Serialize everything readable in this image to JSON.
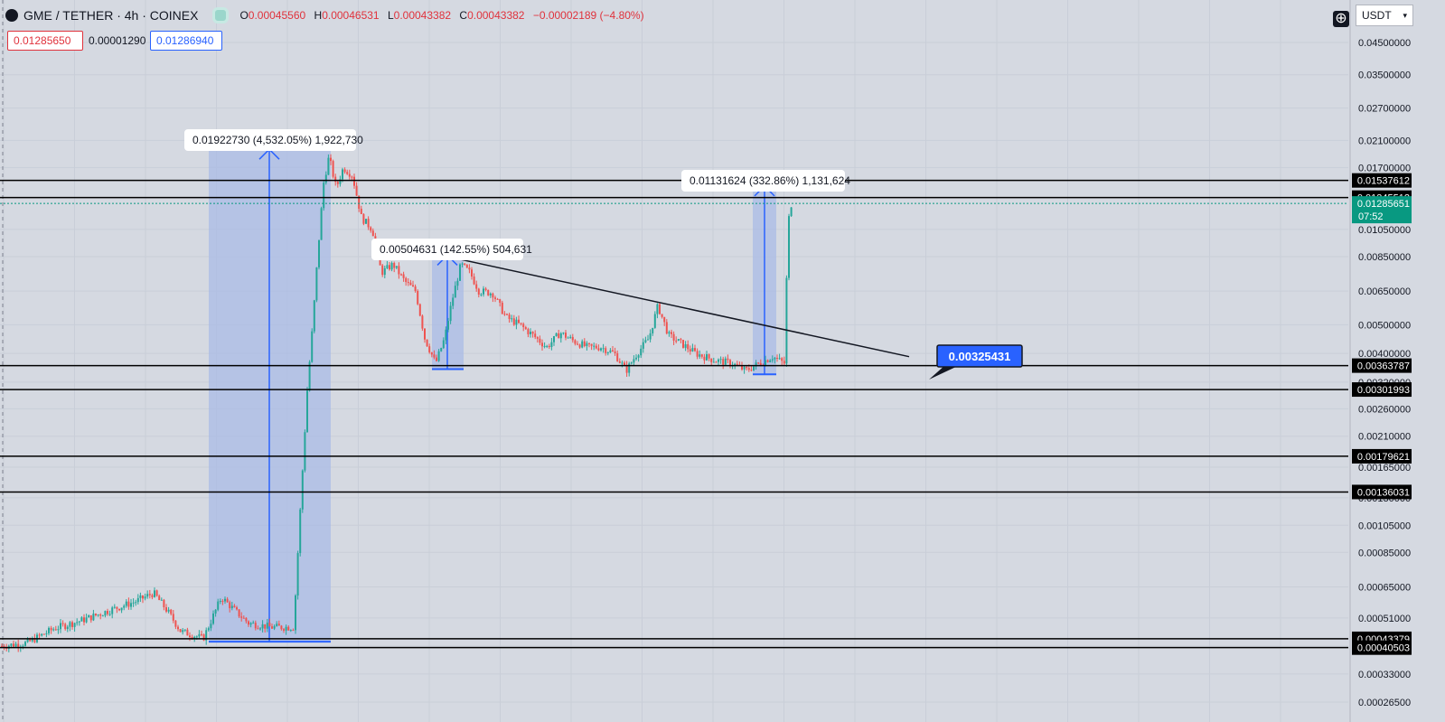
{
  "header": {
    "symbol": "GME / TETHER · 4h · COINEX",
    "ohlc": [
      {
        "k": "O",
        "v": "0.00045560"
      },
      {
        "k": "H",
        "v": "0.00046531"
      },
      {
        "k": "L",
        "v": "0.00043382"
      },
      {
        "k": "C",
        "v": "0.00043382"
      },
      {
        "k": "",
        "v": "−0.00002189 (−4.80%)"
      }
    ],
    "sell_price": "0.01285650",
    "spread": "0.00001290",
    "buy_price": "0.01286940",
    "currency": "USDT"
  },
  "colors": {
    "background": "#d5d9e1",
    "up": "#26a69a",
    "down": "#ef5350",
    "range_fill": "#a9bbe6",
    "range_line": "#2962ff",
    "level_line": "#000000",
    "current_price_bg": "#089981"
  },
  "chart_data": {
    "type": "candlestick",
    "scale": "log",
    "y_axis_ticks": [
      "0.04500000",
      "0.03500000",
      "0.02700000",
      "0.02100000",
      "0.01700000",
      "0.01050000",
      "0.00850000",
      "0.00650000",
      "0.00500000",
      "0.00400000",
      "0.00320000",
      "0.00260000",
      "0.00210000",
      "0.00165000",
      "0.00130000",
      "0.00105000",
      "0.00085000",
      "0.00065000",
      "0.00051000",
      "0.00041000",
      "0.00033000",
      "0.00026500"
    ],
    "horizontal_levels": [
      "0.01537612",
      "0.01345512",
      "0.00363787",
      "0.00301993",
      "0.00179621",
      "0.00136031",
      "0.00043379",
      "0.00040503"
    ],
    "current_price": {
      "value": "0.01285651",
      "countdown": "07:52"
    },
    "callout": "0.00325431",
    "range_measurements": [
      {
        "label": "0.01922730 (4,532.05%) 1,922,730",
        "from": 0.000424,
        "to": 0.0196
      },
      {
        "label": "0.00504631 (142.55%) 504,631",
        "from": 0.00354,
        "to": 0.00859
      },
      {
        "label": "0.01131624 (332.86%) 1,131,624",
        "from": 0.0034,
        "to": 0.01472
      }
    ],
    "trendline": {
      "from": 0.0089,
      "to": 0.0039
    }
  }
}
